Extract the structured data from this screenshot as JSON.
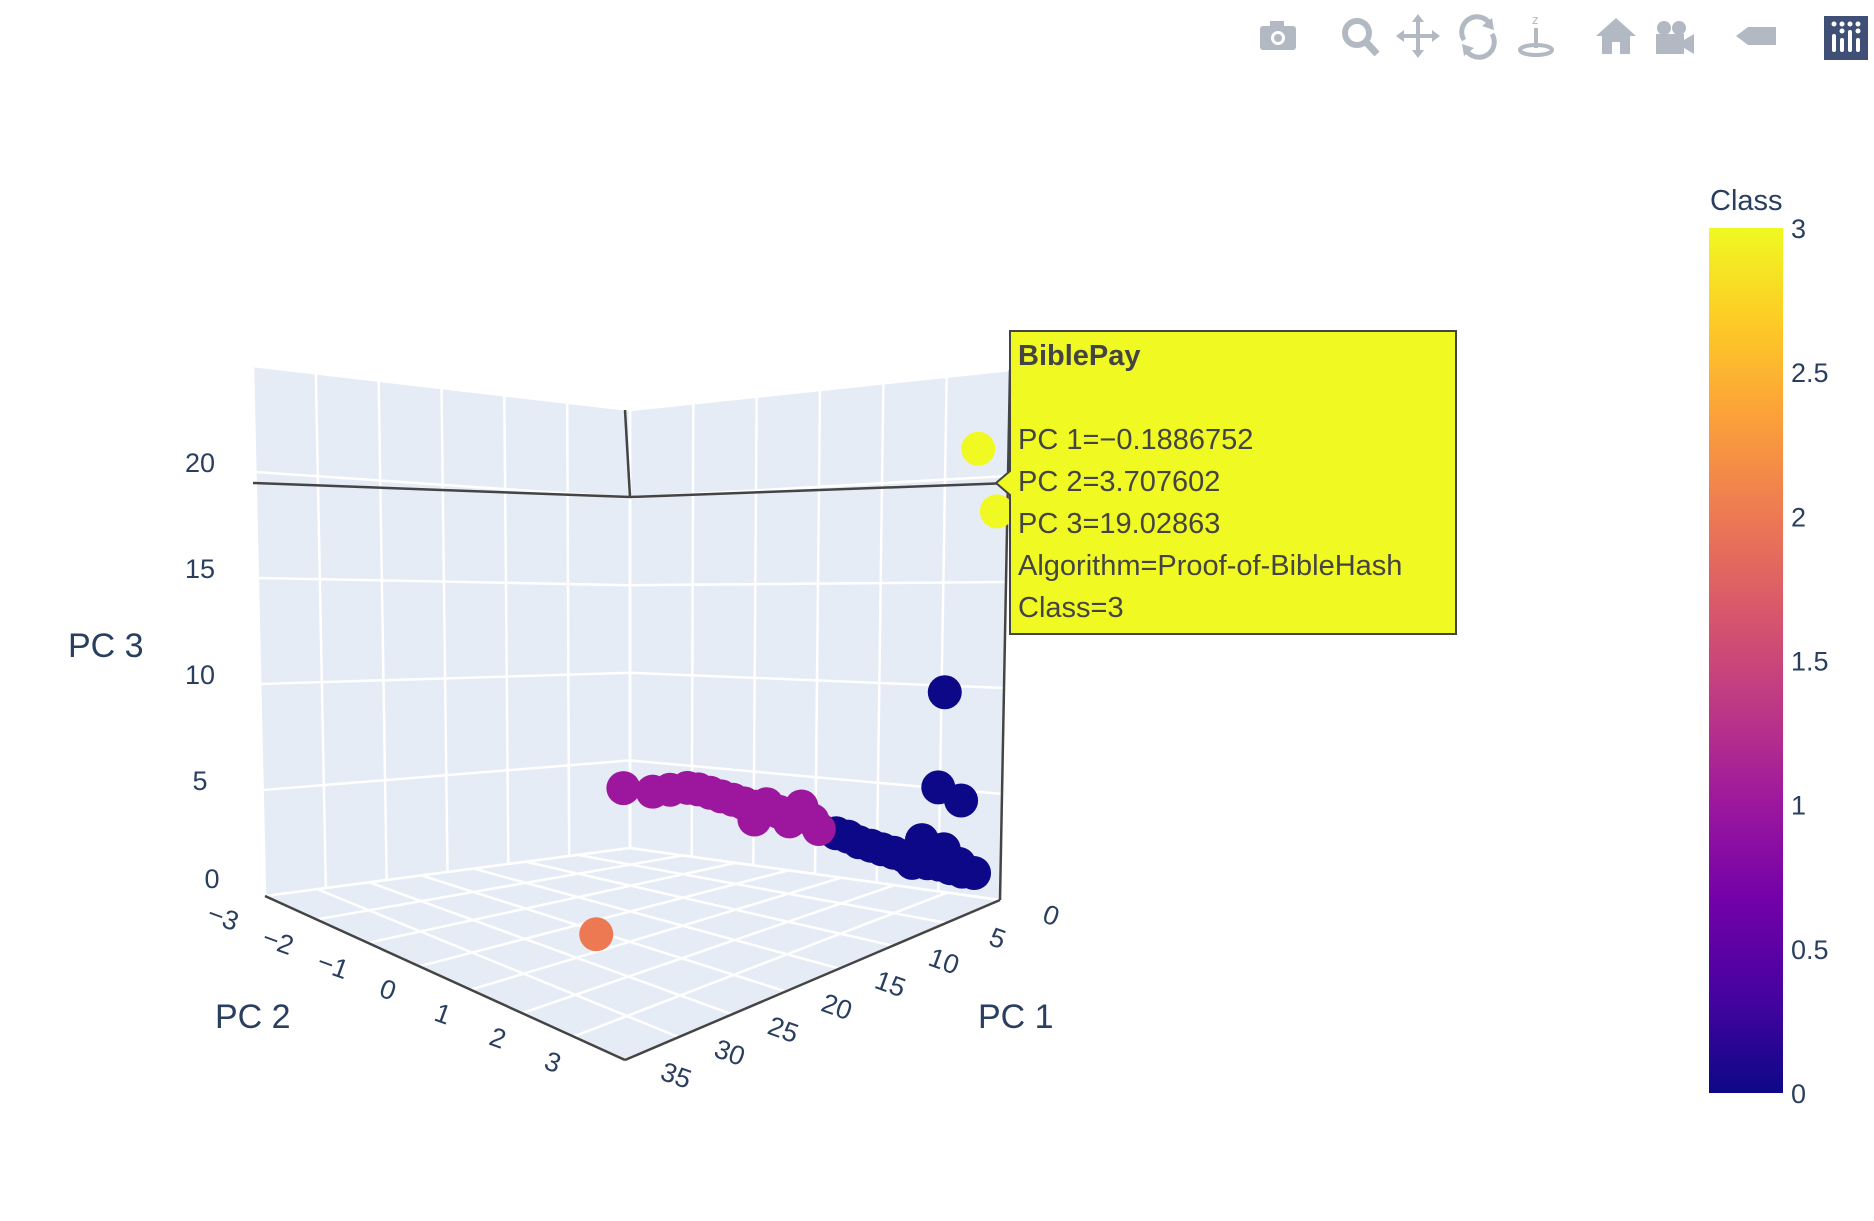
{
  "modebar": {
    "buttons": [
      {
        "name": "camera-icon",
        "title": "Download plot as a png"
      },
      {
        "name": "zoom-icon",
        "title": "Zoom"
      },
      {
        "name": "pan-icon",
        "title": "Pan"
      },
      {
        "name": "orbit-rotation-icon",
        "title": "Orbital rotation"
      },
      {
        "name": "turntable-rotation-icon",
        "title": "Turntable rotation"
      },
      {
        "name": "home-icon",
        "title": "Reset camera to default"
      },
      {
        "name": "camera-last-save-icon",
        "title": "Reset camera to last save"
      },
      {
        "name": "hover-toggle-icon",
        "title": "Toggle show closest data on hover"
      },
      {
        "name": "plotly-logo-icon",
        "title": "Produced with Plotly"
      }
    ],
    "colors": {
      "icon": "#b2b9c3",
      "logo_bg": "#3f4f75"
    }
  },
  "chart_data": {
    "type": "scatter",
    "title": "",
    "axes": {
      "x": {
        "label": "PC 1",
        "ticks": [
          "0",
          "5",
          "10",
          "15",
          "20",
          "25",
          "30",
          "35"
        ],
        "range": [
          0,
          35
        ]
      },
      "y": {
        "label": "PC 2",
        "ticks": [
          "−3",
          "−2",
          "−1",
          "0",
          "1",
          "2",
          "3"
        ],
        "range": [
          -3,
          3.8
        ]
      },
      "z": {
        "label": "PC 3",
        "ticks": [
          "0",
          "5",
          "10",
          "15",
          "20"
        ],
        "range": [
          0,
          22
        ]
      }
    },
    "grid": true,
    "background": "#e5ecf6",
    "colorbar": {
      "title": "Class",
      "ticks": [
        "0",
        "0.5",
        "1",
        "1.5",
        "2",
        "2.5",
        "3"
      ],
      "range": [
        0,
        3
      ],
      "colorscale": [
        "#0d0887",
        "#46039f",
        "#7201a8",
        "#9c179e",
        "#bd3786",
        "#d8576b",
        "#ed7953",
        "#fb9f3a",
        "#fdca26",
        "#f0f921"
      ]
    },
    "points": [
      {
        "pc1": 0.0,
        "pc2": 3.4,
        "pc3": 22.0,
        "class": 3
      },
      {
        "pc1": -0.1886752,
        "pc2": 3.707602,
        "pc3": 19.02863,
        "class": 3,
        "hovered": true,
        "label": "BiblePay",
        "algorithm": "Proof-of-BibleHash"
      },
      {
        "pc1": 33.5,
        "pc2": 2.8,
        "pc3": 0.2,
        "class": 2
      },
      {
        "pc1": 2.2,
        "pc2": -2.7,
        "pc3": 3.2,
        "class": 1
      },
      {
        "pc1": 2.0,
        "pc2": -2.2,
        "pc3": 3.2,
        "class": 1
      },
      {
        "pc1": 1.9,
        "pc2": -1.9,
        "pc3": 3.4,
        "class": 1
      },
      {
        "pc1": 1.8,
        "pc2": -1.6,
        "pc3": 3.6,
        "class": 1
      },
      {
        "pc1": 1.8,
        "pc2": -1.4,
        "pc3": 3.6,
        "class": 1
      },
      {
        "pc1": 1.7,
        "pc2": -1.2,
        "pc3": 3.5,
        "class": 1
      },
      {
        "pc1": 1.7,
        "pc2": -1.0,
        "pc3": 3.4,
        "class": 1
      },
      {
        "pc1": 1.6,
        "pc2": -0.8,
        "pc3": 3.3,
        "class": 1
      },
      {
        "pc1": 1.6,
        "pc2": -0.6,
        "pc3": 3.2,
        "class": 1
      },
      {
        "pc1": 1.5,
        "pc2": -0.4,
        "pc3": 3.1,
        "class": 1
      },
      {
        "pc1": 1.5,
        "pc2": -0.2,
        "pc3": 3.3,
        "class": 1
      },
      {
        "pc1": 1.4,
        "pc2": 0.0,
        "pc3": 3.0,
        "class": 1
      },
      {
        "pc1": 1.4,
        "pc2": 0.2,
        "pc3": 2.6,
        "class": 1
      },
      {
        "pc1": 1.3,
        "pc2": 0.4,
        "pc3": 3.4,
        "class": 1
      },
      {
        "pc1": 1.3,
        "pc2": 0.6,
        "pc3": 2.8,
        "class": 1
      },
      {
        "pc1": 1.2,
        "pc2": 0.7,
        "pc3": 2.4,
        "class": 1
      },
      {
        "pc1": 3.2,
        "pc2": -0.1,
        "pc3": 2.7,
        "class": 1
      },
      {
        "pc1": 1.1,
        "pc2": 1.0,
        "pc3": 2.3,
        "class": 0
      },
      {
        "pc1": 1.0,
        "pc2": 1.2,
        "pc3": 2.2,
        "class": 0
      },
      {
        "pc1": 1.0,
        "pc2": 1.4,
        "pc3": 2.0,
        "class": 0
      },
      {
        "pc1": 0.9,
        "pc2": 1.6,
        "pc3": 1.9,
        "class": 0
      },
      {
        "pc1": 0.9,
        "pc2": 1.8,
        "pc3": 1.8,
        "class": 0
      },
      {
        "pc1": 0.8,
        "pc2": 2.0,
        "pc3": 1.7,
        "class": 0
      },
      {
        "pc1": 0.8,
        "pc2": 2.2,
        "pc3": 1.6,
        "class": 0
      },
      {
        "pc1": 0.7,
        "pc2": 2.4,
        "pc3": 1.5,
        "class": 0
      },
      {
        "pc1": 0.7,
        "pc2": 2.6,
        "pc3": 1.4,
        "class": 0
      },
      {
        "pc1": 0.6,
        "pc2": 2.8,
        "pc3": 1.4,
        "class": 0
      },
      {
        "pc1": 0.6,
        "pc2": 3.0,
        "pc3": 1.3,
        "class": 0
      },
      {
        "pc1": 0.5,
        "pc2": 3.2,
        "pc3": 1.2,
        "class": 0
      },
      {
        "pc1": 0.4,
        "pc2": 3.4,
        "pc3": 1.2,
        "class": 0
      },
      {
        "pc1": 0.8,
        "pc2": 3.2,
        "pc3": 1.6,
        "class": 0
      },
      {
        "pc1": 0.7,
        "pc2": 2.9,
        "pc3": 2.2,
        "class": 0
      },
      {
        "pc1": 0.7,
        "pc2": 2.5,
        "pc3": 2.5,
        "class": 0
      },
      {
        "pc1": 0.5,
        "pc2": 2.3,
        "pc3": 1.7,
        "class": 0
      },
      {
        "pc1": 0.6,
        "pc2": 2.3,
        "pc3": 1.3,
        "class": 0
      },
      {
        "pc1": 0.6,
        "pc2": 2.9,
        "pc3": 9.9,
        "class": 0
      },
      {
        "pc1": 0.7,
        "pc2": 2.8,
        "pc3": 5.2,
        "class": 0
      },
      {
        "pc1": 0.6,
        "pc2": 3.2,
        "pc3": 4.7,
        "class": 0
      }
    ],
    "hover": {
      "title": "BiblePay",
      "lines": [
        "PC 1=−0.1886752",
        "PC 2=3.707602",
        "PC 3=19.02863",
        "Algorithm=Proof-of-BibleHash",
        "Class=3"
      ],
      "bgcolor": "#f0f921",
      "bordercolor": "#444444"
    }
  }
}
